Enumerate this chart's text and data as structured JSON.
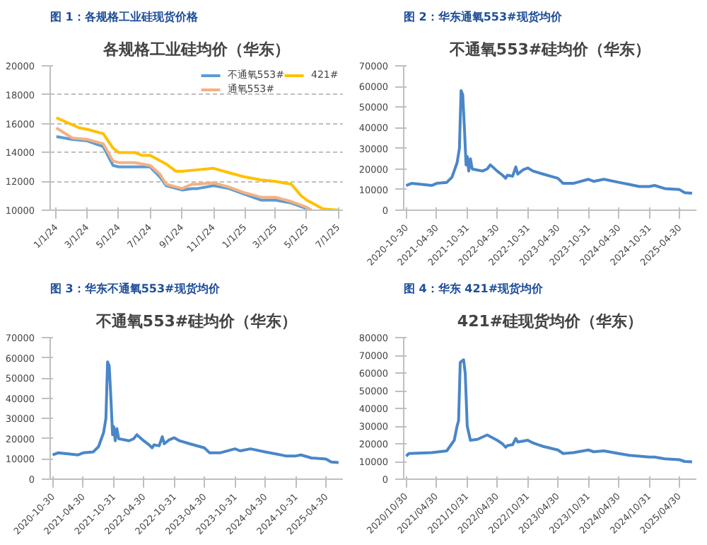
{
  "chart_data": [
    {
      "type": "line",
      "title": "图 1：各规格工业硅现货价格",
      "subtitle": "各规格工业硅均价（华东）",
      "xlim": [
        "2023-12-20",
        "2025-07-10"
      ],
      "xticks": [
        {
          "value": "2024-01-01",
          "label": "1/1/24"
        },
        {
          "value": "2024-03-01",
          "label": "3/1/24"
        },
        {
          "value": "2024-05-01",
          "label": "5/1/24"
        },
        {
          "value": "2024-07-01",
          "label": "7/1/24"
        },
        {
          "value": "2024-09-01",
          "label": "9/1/24"
        },
        {
          "value": "2024-11-01",
          "label": "11/1/24"
        },
        {
          "value": "2025-01-01",
          "label": "1/1/25"
        },
        {
          "value": "2025-03-01",
          "label": "3/1/25"
        },
        {
          "value": "2025-05-01",
          "label": "5/1/25"
        },
        {
          "value": "2025-07-01",
          "label": "7/1/25"
        }
      ],
      "ylim": [
        10000,
        20000
      ],
      "yticks": [
        10000,
        12000,
        14000,
        16000,
        18000,
        20000
      ],
      "grid": "y",
      "legend": "top right",
      "series": [
        {
          "name": "不通氧553#",
          "color": "#5b9bd5",
          "x": [
            "2024-01-01",
            "2024-02-01",
            "2024-03-01",
            "2024-04-01",
            "2024-04-20",
            "2024-05-01",
            "2024-06-01",
            "2024-07-01",
            "2024-07-20",
            "2024-08-01",
            "2024-09-01",
            "2024-09-20",
            "2024-10-01",
            "2024-11-01",
            "2024-12-01",
            "2025-01-01",
            "2025-02-01",
            "2025-03-01",
            "2025-04-01",
            "2025-05-01",
            "2025-05-10"
          ],
          "values": [
            15100,
            14900,
            14800,
            14400,
            13100,
            13000,
            13000,
            13000,
            12300,
            11700,
            11400,
            11500,
            11500,
            11700,
            11500,
            11100,
            10700,
            10700,
            10500,
            10100,
            10000
          ]
        },
        {
          "name": "通氧553#",
          "color": "#f4b183",
          "x": [
            "2024-01-01",
            "2024-02-01",
            "2024-03-01",
            "2024-04-01",
            "2024-04-20",
            "2024-05-01",
            "2024-06-01",
            "2024-07-01",
            "2024-07-20",
            "2024-08-01",
            "2024-09-01",
            "2024-09-20",
            "2024-10-01",
            "2024-11-01",
            "2024-12-01",
            "2025-01-01",
            "2025-02-01",
            "2025-03-01",
            "2025-04-01",
            "2025-05-01",
            "2025-05-10"
          ],
          "values": [
            15700,
            15000,
            14900,
            14600,
            13400,
            13300,
            13300,
            13100,
            12500,
            11800,
            11500,
            11800,
            11800,
            11900,
            11600,
            11200,
            10900,
            10900,
            10600,
            10200,
            10000
          ]
        },
        {
          "name": "421#",
          "color": "#ffc000",
          "x": [
            "2024-01-01",
            "2024-02-15",
            "2024-03-01",
            "2024-04-01",
            "2024-04-20",
            "2024-05-01",
            "2024-06-01",
            "2024-06-15",
            "2024-07-01",
            "2024-08-01",
            "2024-08-20",
            "2024-09-01",
            "2024-10-01",
            "2024-11-01",
            "2024-12-01",
            "2025-01-01",
            "2025-02-01",
            "2025-03-01",
            "2025-04-01",
            "2025-04-20",
            "2025-05-01",
            "2025-06-01",
            "2025-07-01"
          ],
          "values": [
            16400,
            15700,
            15600,
            15300,
            14300,
            14000,
            14000,
            13800,
            13800,
            13200,
            12700,
            12700,
            12800,
            12900,
            12600,
            12300,
            12100,
            12000,
            11800,
            11000,
            10700,
            10100,
            10000
          ]
        }
      ]
    },
    {
      "type": "line",
      "title": "图 2：华东通氧553#现货均价",
      "subtitle": "不通氧553#硅均价（华东）",
      "xlim": [
        "2020-10-15",
        "2025-08-10"
      ],
      "xticks": [
        {
          "value": "2020-10-30",
          "label": "2020-10-30"
        },
        {
          "value": "2021-04-30",
          "label": "2021-04-30"
        },
        {
          "value": "2021-10-31",
          "label": "2021-10-31"
        },
        {
          "value": "2022-04-30",
          "label": "2022-04-30"
        },
        {
          "value": "2022-10-31",
          "label": "2022-10-31"
        },
        {
          "value": "2023-04-30",
          "label": "2023-04-30"
        },
        {
          "value": "2023-10-31",
          "label": "2023-10-31"
        },
        {
          "value": "2024-04-30",
          "label": "2024-04-30"
        },
        {
          "value": "2024-10-31",
          "label": "2024-10-31"
        },
        {
          "value": "2025-04-30",
          "label": "2025-04-30"
        }
      ],
      "ylim": [
        0,
        70000
      ],
      "yticks": [
        0,
        10000,
        20000,
        30000,
        40000,
        50000,
        60000,
        70000
      ],
      "series": [
        {
          "color": "#4a86c8",
          "x": [
            "2020-10-30",
            "2020-12-01",
            "2021-02-01",
            "2021-04-01",
            "2021-05-01",
            "2021-07-01",
            "2021-08-01",
            "2021-09-01",
            "2021-09-15",
            "2021-09-25",
            "2021-10-05",
            "2021-10-15",
            "2021-10-25",
            "2021-11-01",
            "2021-11-10",
            "2021-11-20",
            "2021-12-01",
            "2022-01-01",
            "2022-02-01",
            "2022-03-01",
            "2022-03-20",
            "2022-04-30",
            "2022-06-01",
            "2022-06-20",
            "2022-07-01",
            "2022-08-01",
            "2022-08-20",
            "2022-09-01",
            "2022-10-01",
            "2022-10-31",
            "2022-12-01",
            "2023-02-01",
            "2023-04-30",
            "2023-06-01",
            "2023-08-01",
            "2023-10-31",
            "2023-12-01",
            "2024-02-01",
            "2024-04-30",
            "2024-07-01",
            "2024-09-01",
            "2024-10-31",
            "2024-12-01",
            "2025-02-01",
            "2025-04-30",
            "2025-06-01",
            "2025-07-15"
          ],
          "values": [
            12000,
            13000,
            12500,
            12000,
            13000,
            13500,
            16000,
            23000,
            30000,
            58000,
            56000,
            40000,
            22000,
            26000,
            19000,
            25000,
            20000,
            19500,
            19000,
            20000,
            22000,
            19000,
            17000,
            15500,
            17000,
            16500,
            21000,
            17500,
            19500,
            20500,
            19000,
            17500,
            15500,
            13000,
            13000,
            15000,
            14000,
            15000,
            13500,
            12500,
            11500,
            11500,
            12000,
            10500,
            10000,
            8500,
            8200
          ]
        }
      ]
    },
    {
      "type": "line",
      "title": "图 3：华东不通氧553#现货均价",
      "subtitle": "不通氧553#硅均价（华东）",
      "xlim": [
        "2020-10-15",
        "2025-08-10"
      ],
      "xticks": [
        {
          "value": "2020-10-30",
          "label": "2020-10-30"
        },
        {
          "value": "2021-04-30",
          "label": "2021-04-30"
        },
        {
          "value": "2021-10-31",
          "label": "2021-10-31"
        },
        {
          "value": "2022-04-30",
          "label": "2022-04-30"
        },
        {
          "value": "2022-10-31",
          "label": "2022-10-31"
        },
        {
          "value": "2023-04-30",
          "label": "2023-04-30"
        },
        {
          "value": "2023-10-31",
          "label": "2023-10-31"
        },
        {
          "value": "2024-04-30",
          "label": "2024-04-30"
        },
        {
          "value": "2024-10-31",
          "label": "2024-10-31"
        },
        {
          "value": "2025-04-30",
          "label": "2025-04-30"
        }
      ],
      "ylim": [
        0,
        70000
      ],
      "yticks": [
        0,
        10000,
        20000,
        30000,
        40000,
        50000,
        60000,
        70000
      ],
      "series": [
        {
          "color": "#4a86c8",
          "x": [
            "2020-10-30",
            "2020-12-01",
            "2021-02-01",
            "2021-04-01",
            "2021-05-01",
            "2021-07-01",
            "2021-08-01",
            "2021-09-01",
            "2021-09-15",
            "2021-09-25",
            "2021-10-05",
            "2021-10-15",
            "2021-10-25",
            "2021-11-01",
            "2021-11-10",
            "2021-11-20",
            "2021-12-01",
            "2022-01-01",
            "2022-02-01",
            "2022-03-01",
            "2022-03-20",
            "2022-04-30",
            "2022-06-01",
            "2022-06-20",
            "2022-07-01",
            "2022-08-01",
            "2022-08-20",
            "2022-09-01",
            "2022-10-01",
            "2022-10-31",
            "2022-12-01",
            "2023-02-01",
            "2023-04-30",
            "2023-06-01",
            "2023-08-01",
            "2023-10-31",
            "2023-12-01",
            "2024-02-01",
            "2024-04-30",
            "2024-07-01",
            "2024-09-01",
            "2024-10-31",
            "2024-12-01",
            "2025-02-01",
            "2025-04-30",
            "2025-06-01",
            "2025-07-15"
          ],
          "values": [
            12000,
            13000,
            12500,
            12000,
            13000,
            13500,
            16000,
            23000,
            30000,
            58000,
            56000,
            40000,
            22000,
            26000,
            19000,
            25000,
            20000,
            19500,
            19000,
            20000,
            22000,
            19000,
            17000,
            15500,
            17000,
            16500,
            21000,
            17500,
            19500,
            20500,
            19000,
            17500,
            15500,
            13000,
            13000,
            15000,
            14000,
            15000,
            13500,
            12500,
            11500,
            11500,
            12000,
            10500,
            10000,
            8500,
            8200
          ]
        }
      ]
    },
    {
      "type": "line",
      "title": "图 4：华东 421#现货均价",
      "subtitle": "421#硅现货均价（华东）",
      "xlim": [
        "2020-10-15",
        "2025-08-10"
      ],
      "xticks": [
        {
          "value": "2020-10-30",
          "label": "2020/10/30"
        },
        {
          "value": "2021-04-30",
          "label": "2021/04/30"
        },
        {
          "value": "2021-10-31",
          "label": "2021/10/31"
        },
        {
          "value": "2022-04-30",
          "label": "2022/04/30"
        },
        {
          "value": "2022-10-31",
          "label": "2022/10/31"
        },
        {
          "value": "2023-04-30",
          "label": "2023/04/30"
        },
        {
          "value": "2023-10-31",
          "label": "2023/10/31"
        },
        {
          "value": "2024-04-30",
          "label": "2024/04/30"
        },
        {
          "value": "2024-10-31",
          "label": "2024/10/31"
        },
        {
          "value": "2025-04-30",
          "label": "2025/04/30"
        }
      ],
      "ylim": [
        0,
        80000
      ],
      "yticks": [
        0,
        10000,
        20000,
        30000,
        40000,
        50000,
        60000,
        70000,
        80000
      ],
      "series": [
        {
          "color": "#4a86c8",
          "x": [
            "2020-10-30",
            "2020-11-15",
            "2021-04-01",
            "2021-07-01",
            "2021-08-15",
            "2021-09-01",
            "2021-09-10",
            "2021-09-20",
            "2021-10-10",
            "2021-10-20",
            "2021-11-01",
            "2021-11-20",
            "2022-01-01",
            "2022-03-01",
            "2022-04-30",
            "2022-06-01",
            "2022-06-20",
            "2022-07-01",
            "2022-08-01",
            "2022-08-20",
            "2022-09-01",
            "2022-10-31",
            "2022-12-01",
            "2023-02-01",
            "2023-04-30",
            "2023-06-01",
            "2023-08-01",
            "2023-10-31",
            "2023-12-01",
            "2024-02-01",
            "2024-04-30",
            "2024-07-01",
            "2024-10-31",
            "2024-12-01",
            "2025-02-01",
            "2025-04-30",
            "2025-06-01",
            "2025-07-15"
          ],
          "values": [
            13000,
            14500,
            15000,
            16000,
            22000,
            30000,
            33000,
            66000,
            67500,
            60000,
            30000,
            22000,
            22500,
            25000,
            22000,
            20000,
            18000,
            19000,
            19500,
            23000,
            21000,
            22000,
            20500,
            18500,
            16500,
            14500,
            15000,
            16500,
            15500,
            16000,
            14500,
            13500,
            12500,
            12500,
            11500,
            11000,
            10000,
            9800
          ]
        }
      ]
    }
  ]
}
